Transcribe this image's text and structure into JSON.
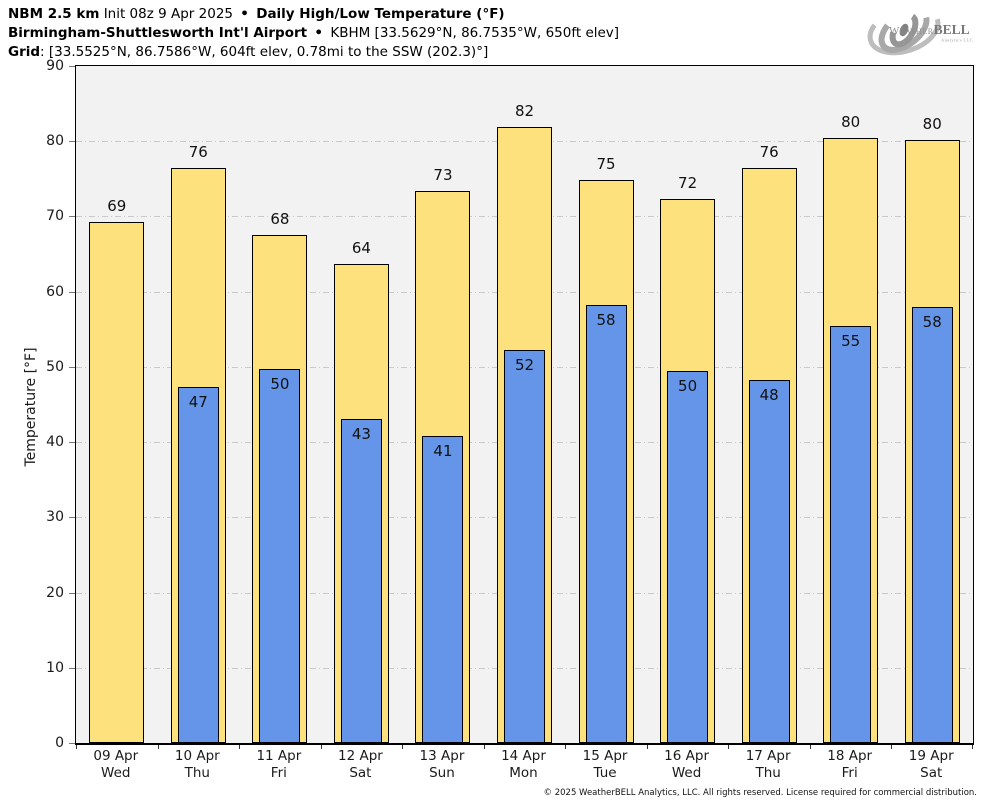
{
  "header": {
    "line1": {
      "model": "NBM 2.5 km",
      "init": "Init 08z 9 Apr 2025",
      "sep": "•",
      "product": "Daily High/Low Temperature (°F)"
    },
    "line2": {
      "station": "Birmingham-Shuttlesworth Int'l Airport",
      "sep": "•",
      "details": "KBHM [33.5629°N, 86.7535°W, 650ft elev]"
    },
    "line3": {
      "label": "Grid",
      "details": ": [33.5525°N, 86.7586°W, 604ft elev, 0.78mi to the SSW (202.3)°]"
    }
  },
  "logo": {
    "weather_initial": "W",
    "weather_rest": "EATHER",
    "bell": "BELL",
    "sub": "Analytics LLC"
  },
  "chart_data": {
    "type": "bar",
    "title": "Daily High/Low Temperature (°F)",
    "xlabel": "",
    "ylabel": "Temperature [°F]",
    "ylim": [
      0,
      90
    ],
    "yticks": [
      0,
      10,
      20,
      30,
      40,
      50,
      60,
      70,
      80,
      90
    ],
    "grid": true,
    "legend": "none",
    "categories": [
      {
        "date": "09 Apr",
        "day": "Wed"
      },
      {
        "date": "10 Apr",
        "day": "Thu"
      },
      {
        "date": "11 Apr",
        "day": "Fri"
      },
      {
        "date": "12 Apr",
        "day": "Sat"
      },
      {
        "date": "13 Apr",
        "day": "Sun"
      },
      {
        "date": "14 Apr",
        "day": "Mon"
      },
      {
        "date": "15 Apr",
        "day": "Tue"
      },
      {
        "date": "16 Apr",
        "day": "Wed"
      },
      {
        "date": "17 Apr",
        "day": "Thu"
      },
      {
        "date": "18 Apr",
        "day": "Fri"
      },
      {
        "date": "19 Apr",
        "day": "Sat"
      }
    ],
    "series": [
      {
        "name": "Daily High",
        "color": "#FDE17D",
        "border_color": "#000000",
        "values": [
          69.3,
          76.4,
          67.6,
          63.7,
          73.4,
          81.9,
          74.9,
          72.3,
          76.4,
          80.4,
          80.1
        ],
        "labels": [
          69,
          76,
          68,
          64,
          73,
          82,
          75,
          72,
          76,
          80,
          80
        ]
      },
      {
        "name": "Daily Low",
        "color": "#6495E8",
        "border_color": "#000000",
        "values": [
          null,
          47.3,
          49.7,
          43.1,
          40.8,
          52.2,
          58.2,
          49.5,
          48.2,
          55.4,
          58.0
        ],
        "labels": [
          null,
          47,
          50,
          43,
          41,
          52,
          58,
          50,
          48,
          55,
          58
        ]
      }
    ]
  },
  "colors": {
    "plot_background": "#F2F2F2",
    "gridline": "#C9C9C9",
    "axis": "#000000",
    "high_bar": "#FDE17D",
    "low_bar": "#6495E8",
    "logo_gray": "#9A9A9A"
  },
  "footer": {
    "copyright": "© 2025 WeatherBELL Analytics, LLC. All rights reserved. License required for commercial distribution."
  }
}
